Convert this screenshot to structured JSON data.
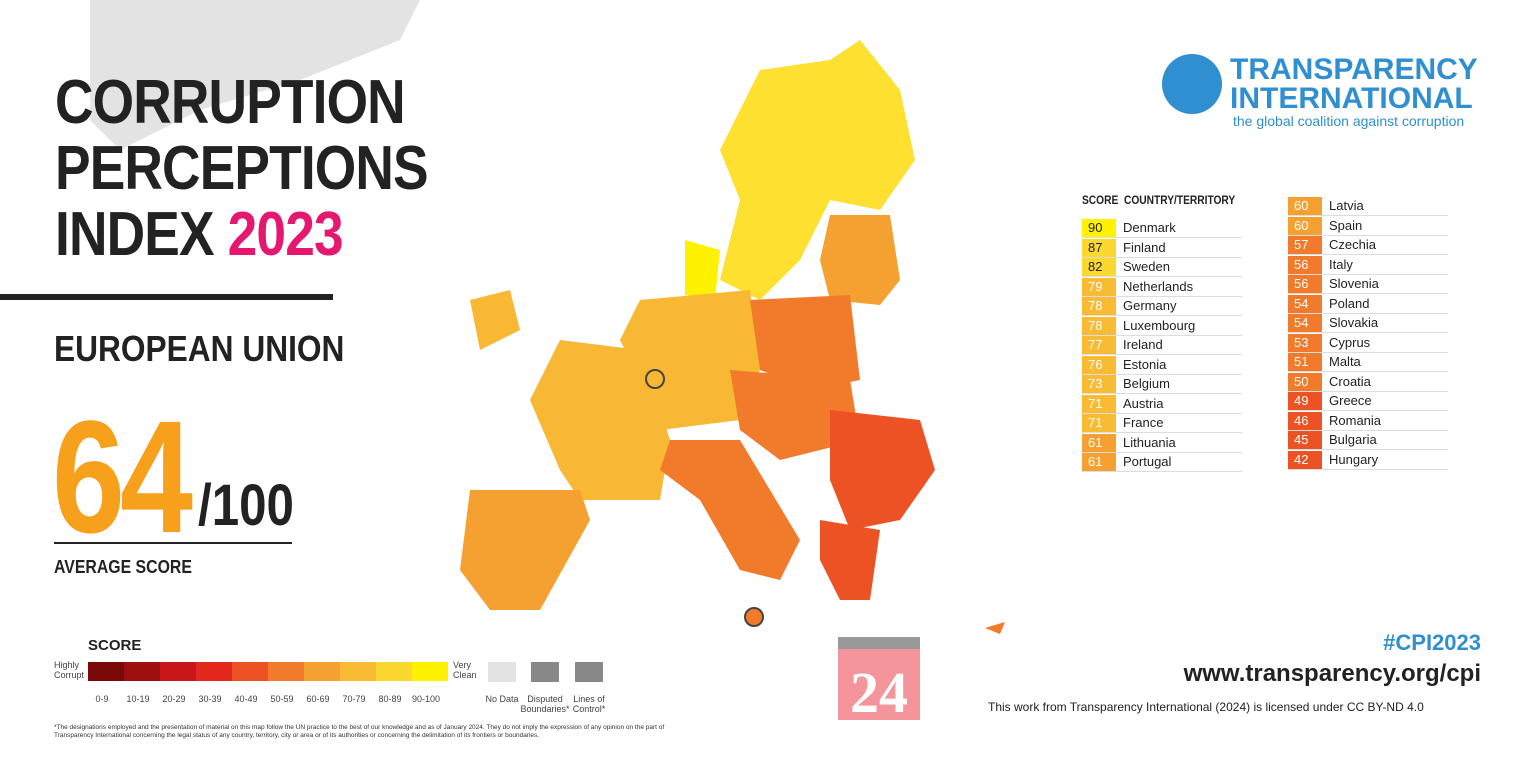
{
  "title": [
    "CORRUPTION",
    "PERCEPTIONS",
    "INDEX"
  ],
  "year": "2023",
  "region": "EUROPEAN UNION",
  "average": {
    "score": 64,
    "max": "/100",
    "label": "AVERAGE SCORE"
  },
  "logo": {
    "line1": "TRANSPARENCY",
    "line2": "INTERNATIONAL",
    "tagline": "the global coalition against corruption"
  },
  "table": {
    "headers": [
      "SCORE",
      "COUNTRY/TERRITORY"
    ],
    "rows": [
      [
        90,
        "Denmark"
      ],
      [
        87,
        "Finland"
      ],
      [
        82,
        "Sweden"
      ],
      [
        79,
        "Netherlands"
      ],
      [
        78,
        "Germany"
      ],
      [
        78,
        "Luxembourg"
      ],
      [
        77,
        "Ireland"
      ],
      [
        76,
        "Estonia"
      ],
      [
        73,
        "Belgium"
      ],
      [
        71,
        "Austria"
      ],
      [
        71,
        "France"
      ],
      [
        61,
        "Lithuania"
      ],
      [
        61,
        "Portugal"
      ],
      [
        60,
        "Latvia"
      ],
      [
        60,
        "Spain"
      ],
      [
        57,
        "Czechia"
      ],
      [
        56,
        "Italy"
      ],
      [
        56,
        "Slovenia"
      ],
      [
        54,
        "Poland"
      ],
      [
        54,
        "Slovakia"
      ],
      [
        53,
        "Cyprus"
      ],
      [
        51,
        "Malta"
      ],
      [
        50,
        "Croatia"
      ],
      [
        49,
        "Greece"
      ],
      [
        46,
        "Romania"
      ],
      [
        45,
        "Bulgaria"
      ],
      [
        42,
        "Hungary"
      ]
    ]
  },
  "legend": {
    "title": "SCORE",
    "low": "Highly Corrupt",
    "high": "Very Clean",
    "ranges": [
      "0-9",
      "10-19",
      "20-29",
      "30-39",
      "40-49",
      "50-59",
      "60-69",
      "70-79",
      "80-89",
      "90-100"
    ],
    "colors": [
      "#7a0a0a",
      "#9e0f10",
      "#c8161b",
      "#e2271d",
      "#ec5224",
      "#f17b2b",
      "#f5a132",
      "#f8bb33",
      "#fbd830",
      "#fff200"
    ],
    "no_data": "No Data",
    "disputed": "Disputed Boundaries*",
    "lines": "Lines of Control*"
  },
  "badge": "24",
  "hashtag": "#CPI2023",
  "url": "www.transparency.org/cpi",
  "license": "This work from Transparency International (2024) is licensed under CC BY-ND 4.0",
  "footnote": "*The designations employed and the presentation of material on this map follow the UN practice to the best of our knowledge and as of January 2024. They do not imply the expression of any opinion on the part of Transparency International concerning the legal status of any country, territory, city or area or of its authorities or concerning the delimitation of its frontiers or boundaries."
}
